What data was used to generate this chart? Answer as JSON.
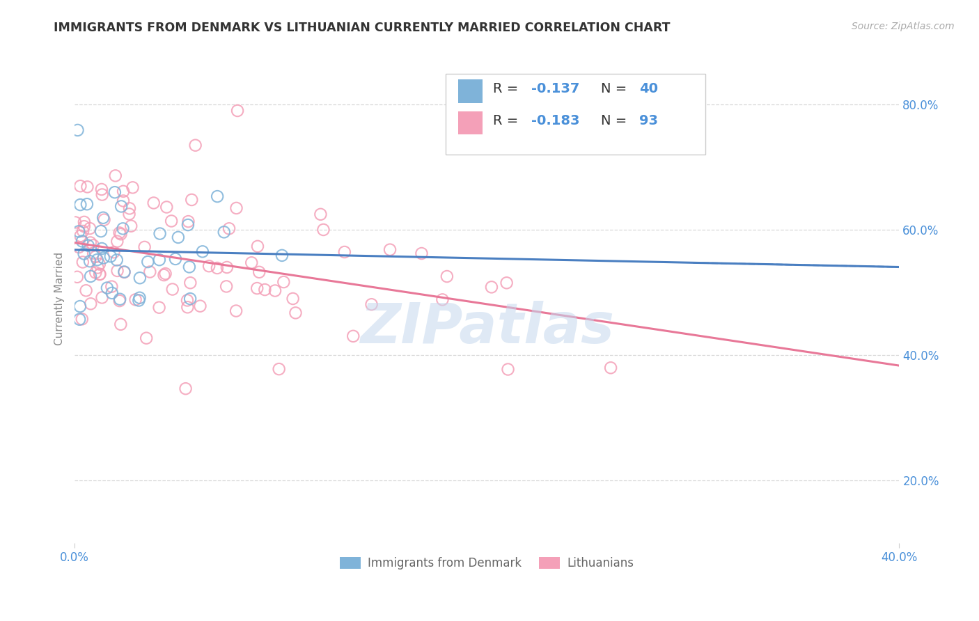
{
  "title": "IMMIGRANTS FROM DENMARK VS LITHUANIAN CURRENTLY MARRIED CORRELATION CHART",
  "source_text": "Source: ZipAtlas.com",
  "ylabel": "Currently Married",
  "xlim": [
    0.0,
    0.4
  ],
  "ylim": [
    0.1,
    0.88
  ],
  "y_tick_labels": [
    "20.0%",
    "40.0%",
    "60.0%",
    "80.0%"
  ],
  "y_tick_values": [
    0.2,
    0.4,
    0.6,
    0.8
  ],
  "background_color": "#ffffff",
  "denmark_color": "#7fb3d9",
  "lithuanian_color": "#f4a0b8",
  "denmark_R": -0.137,
  "denmark_N": 40,
  "lithuanian_R": -0.183,
  "lithuanian_N": 93,
  "legend_label_denmark": "Immigrants from Denmark",
  "legend_label_lithuanian": "Lithuanians",
  "title_color": "#333333",
  "stats_color": "#4a90d9",
  "trend_blue": "#4a7fc1",
  "trend_pink": "#e87898",
  "watermark_color": "#c5d8ee"
}
